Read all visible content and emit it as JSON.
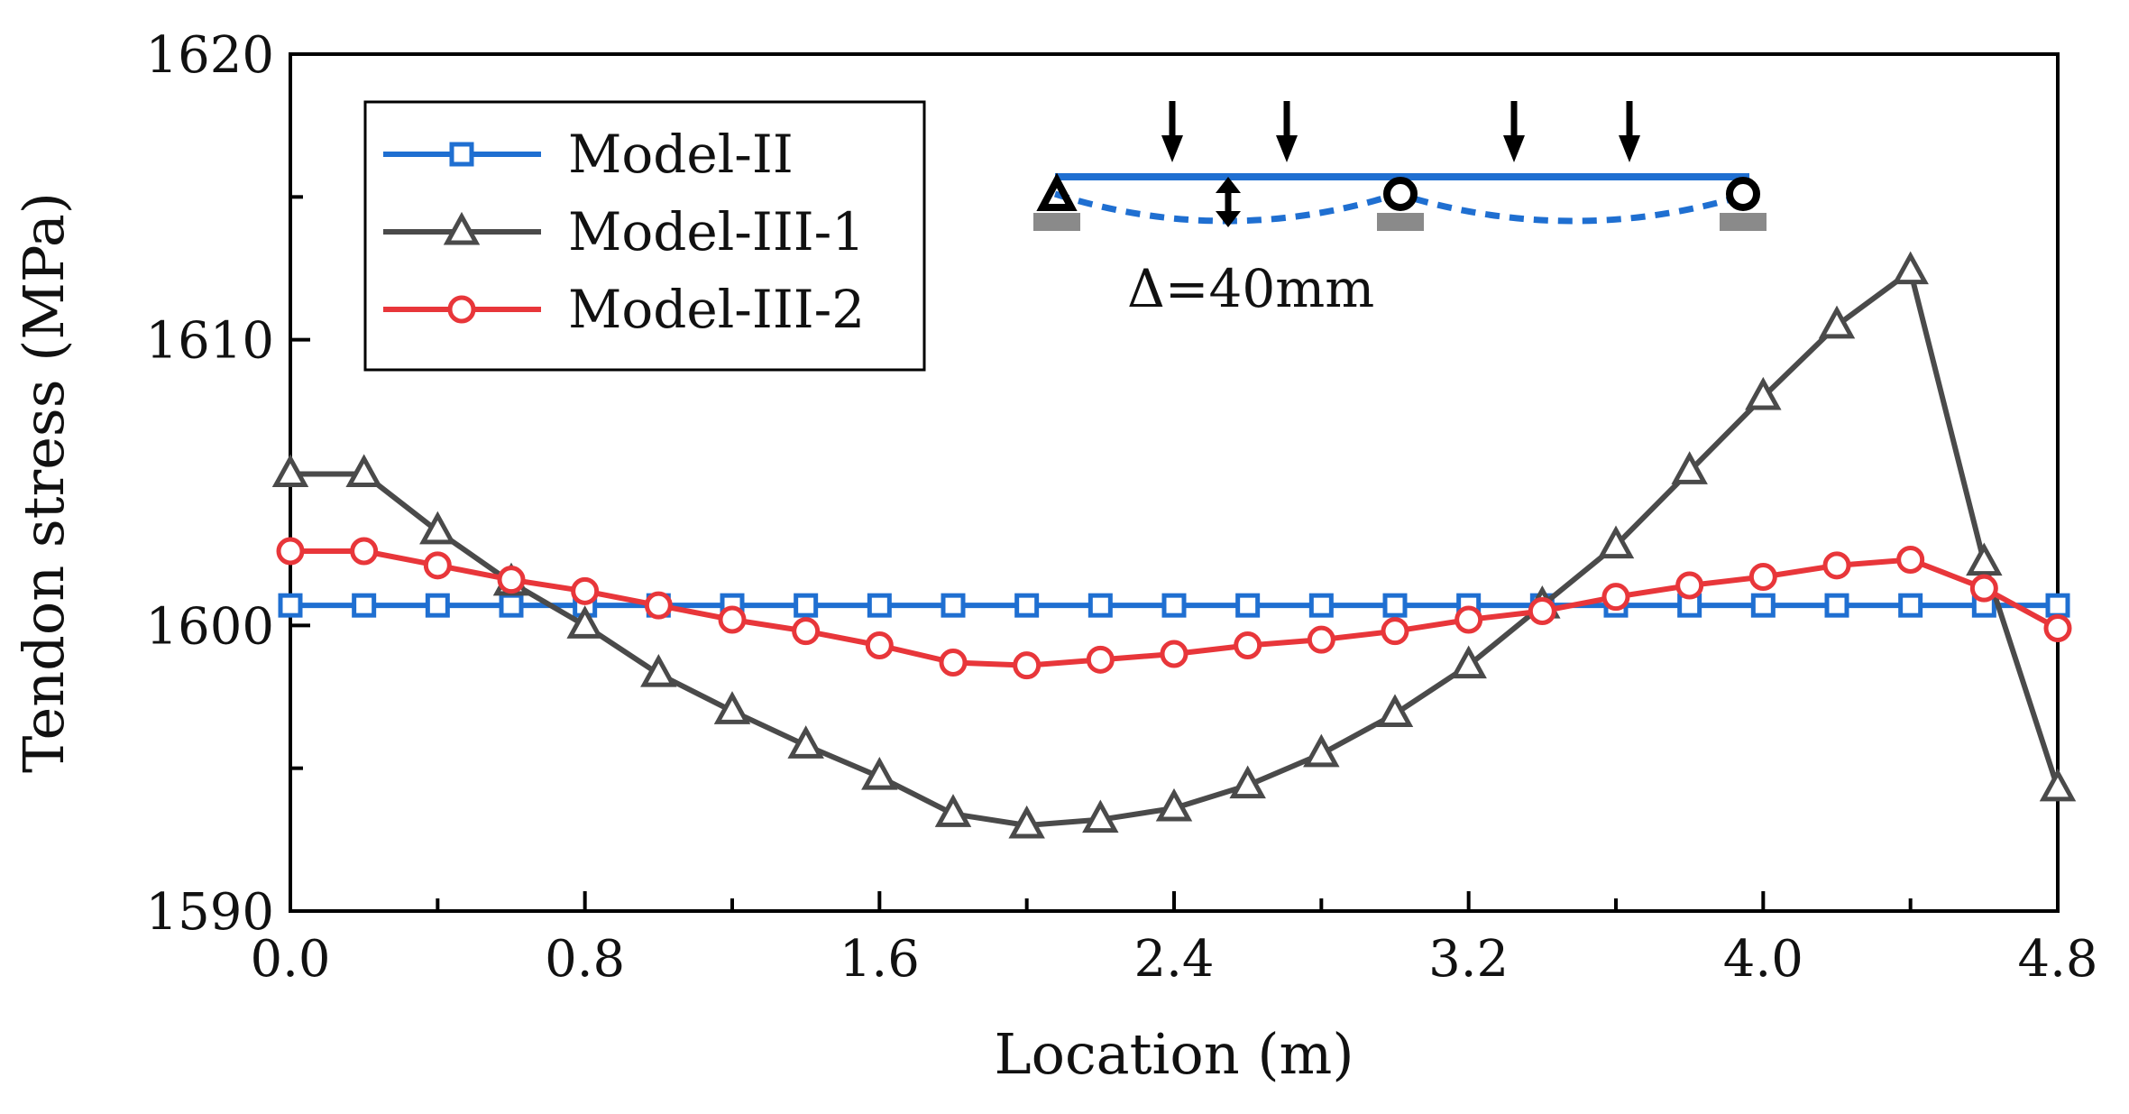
{
  "chart_data": {
    "type": "line",
    "title": "",
    "xlabel": "Location (m)",
    "ylabel": "Tendon stress (MPa)",
    "xlim": [
      0,
      4.8
    ],
    "ylim": [
      1590,
      1620
    ],
    "xticks": [
      "0.0",
      "0.8",
      "1.6",
      "2.4",
      "3.2",
      "4.0",
      "4.8"
    ],
    "yticks": [
      "1590",
      "1600",
      "1610",
      "1620"
    ],
    "legend_position": "top-left",
    "x": [
      0.0,
      0.2,
      0.4,
      0.6,
      0.8,
      1.0,
      1.2,
      1.4,
      1.6,
      1.8,
      2.0,
      2.2,
      2.4,
      2.6,
      2.8,
      3.0,
      3.2,
      3.4,
      3.6,
      3.8,
      4.0,
      4.2,
      4.4,
      4.6,
      4.8
    ],
    "series": [
      {
        "name": "Model-II",
        "marker": "square",
        "color": "#1f6fd1",
        "values": [
          1600.7,
          1600.7,
          1600.7,
          1600.7,
          1600.7,
          1600.7,
          1600.7,
          1600.7,
          1600.7,
          1600.7,
          1600.7,
          1600.7,
          1600.7,
          1600.7,
          1600.7,
          1600.7,
          1600.7,
          1600.7,
          1600.7,
          1600.7,
          1600.7,
          1600.7,
          1600.7,
          1600.7,
          1600.7
        ]
      },
      {
        "name": "Model-III-1",
        "marker": "triangle",
        "color": "#4a4a4a",
        "values": [
          1605.3,
          1605.3,
          1603.3,
          1601.5,
          1600.0,
          1598.3,
          1597.0,
          1595.8,
          1594.7,
          1593.4,
          1593.0,
          1593.2,
          1593.6,
          1594.4,
          1595.5,
          1596.9,
          1598.6,
          1600.7,
          1602.8,
          1605.4,
          1608.0,
          1610.5,
          1612.4,
          1602.2,
          1594.3
        ]
      },
      {
        "name": "Model-III-2",
        "marker": "circle",
        "color": "#e8363a",
        "values": [
          1602.6,
          1602.6,
          1602.1,
          1601.6,
          1601.2,
          1600.7,
          1600.2,
          1599.8,
          1599.3,
          1598.7,
          1598.6,
          1598.8,
          1599.0,
          1599.3,
          1599.5,
          1599.8,
          1600.2,
          1600.5,
          1601.0,
          1601.4,
          1601.7,
          1602.1,
          1602.3,
          1601.3,
          1599.9
        ]
      }
    ],
    "annotations": {
      "deflection_label": "Δ=40mm",
      "beam_color": "#1f6fd1"
    }
  }
}
